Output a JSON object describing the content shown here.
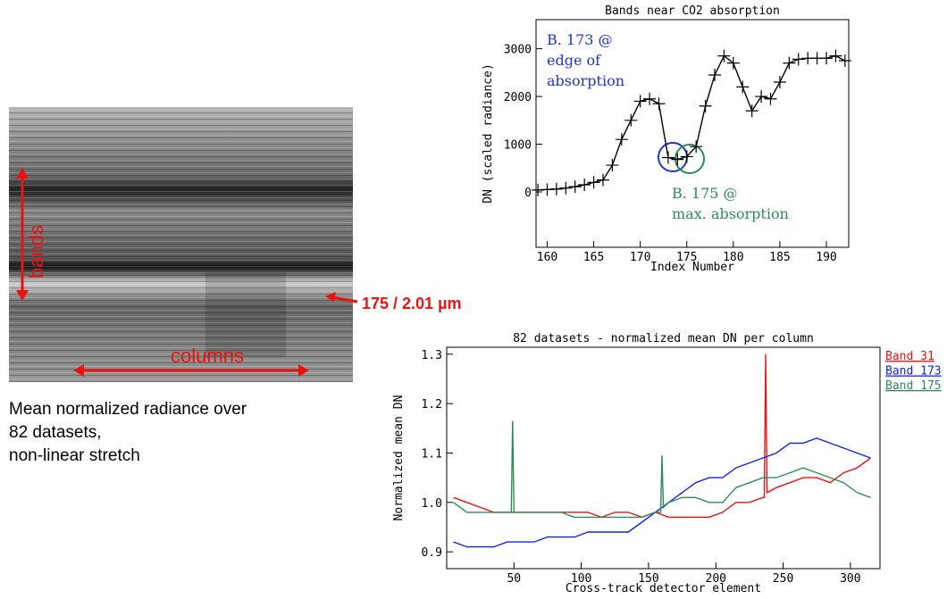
{
  "chart_data": [
    {
      "type": "line",
      "title": "Bands near CO2 absorption",
      "x_label": "Index Number",
      "y_label": "DN (scaled radiance)",
      "x": [
        159,
        160,
        161,
        162,
        163,
        164,
        165,
        166,
        167,
        168,
        169,
        170,
        171,
        172,
        173,
        174,
        175,
        176,
        177,
        178,
        179,
        180,
        181,
        182,
        183,
        184,
        185,
        186,
        187,
        188,
        189,
        190,
        191,
        192
      ],
      "values": [
        40,
        50,
        60,
        80,
        110,
        150,
        200,
        250,
        560,
        1100,
        1500,
        1900,
        1950,
        1850,
        720,
        680,
        740,
        950,
        1800,
        2450,
        2850,
        2700,
        2200,
        1700,
        2000,
        1950,
        2300,
        2700,
        2780,
        2800,
        2800,
        2800,
        2850,
        2750
      ],
      "color": "#000000",
      "marker": "+",
      "xlim": [
        158.8,
        192.4
      ],
      "xticks": [
        160,
        165,
        170,
        175,
        180,
        185,
        190
      ],
      "ylim": [
        -1160,
        3610
      ],
      "yticks": [
        0,
        1000,
        2000,
        3000
      ],
      "annotations": [
        {
          "lines": [
            "B. 173 @",
            "edge of",
            "absorption"
          ],
          "color": "#2233cc"
        },
        {
          "lines": [
            "B. 175 @",
            "max. absorption"
          ],
          "color": "#2e8b57"
        }
      ]
    },
    {
      "type": "line",
      "title": "82 datasets - normalized mean DN per column",
      "x_label": "Cross-track detector element",
      "y_label": "Normalized mean DN",
      "series": [
        {
          "name": "Band 31",
          "color": "#ee1111",
          "x": [
            5,
            15,
            25,
            35,
            45,
            55,
            65,
            75,
            85,
            95,
            105,
            115,
            125,
            135,
            145,
            155,
            165,
            175,
            185,
            195,
            205,
            215,
            225,
            235,
            236,
            237,
            238,
            245,
            255,
            265,
            275,
            285,
            295,
            305,
            315
          ],
          "values": [
            1.01,
            1.0,
            0.99,
            0.98,
            0.98,
            0.98,
            0.98,
            0.98,
            0.98,
            0.98,
            0.98,
            0.97,
            0.98,
            0.98,
            0.97,
            0.98,
            0.97,
            0.97,
            0.97,
            0.97,
            0.98,
            1.0,
            1.0,
            1.01,
            1.01,
            1.3,
            1.02,
            1.03,
            1.04,
            1.05,
            1.05,
            1.04,
            1.06,
            1.07,
            1.09
          ]
        },
        {
          "name": "Band 173",
          "color": "#1122ee",
          "x": [
            5,
            15,
            25,
            35,
            45,
            55,
            65,
            75,
            85,
            95,
            105,
            115,
            125,
            135,
            145,
            155,
            165,
            175,
            185,
            195,
            205,
            215,
            225,
            235,
            245,
            255,
            265,
            275,
            285,
            295,
            305,
            315
          ],
          "values": [
            0.92,
            0.91,
            0.91,
            0.91,
            0.92,
            0.92,
            0.92,
            0.93,
            0.93,
            0.93,
            0.94,
            0.94,
            0.94,
            0.94,
            0.96,
            0.98,
            1.0,
            1.02,
            1.04,
            1.05,
            1.05,
            1.07,
            1.08,
            1.09,
            1.1,
            1.12,
            1.12,
            1.13,
            1.12,
            1.11,
            1.1,
            1.09
          ]
        },
        {
          "name": "Band 175",
          "color": "#2e8b57",
          "x": [
            5,
            15,
            25,
            35,
            45,
            48,
            49,
            50,
            55,
            65,
            75,
            85,
            95,
            105,
            115,
            125,
            135,
            145,
            155,
            159,
            160,
            161,
            165,
            175,
            185,
            195,
            205,
            215,
            225,
            235,
            245,
            255,
            265,
            275,
            285,
            295,
            305,
            315
          ],
          "values": [
            1.0,
            0.98,
            0.98,
            0.98,
            0.98,
            0.98,
            1.165,
            0.98,
            0.98,
            0.98,
            0.98,
            0.98,
            0.97,
            0.97,
            0.97,
            0.97,
            0.97,
            0.97,
            0.98,
            0.98,
            1.095,
            0.99,
            1.0,
            1.01,
            1.01,
            1.0,
            1.0,
            1.03,
            1.04,
            1.05,
            1.05,
            1.06,
            1.07,
            1.06,
            1.05,
            1.04,
            1.02,
            1.01
          ]
        }
      ],
      "xlim": [
        0,
        322
      ],
      "xticks": [
        50,
        100,
        150,
        200,
        250,
        300
      ],
      "ylim": [
        0.866,
        1.314
      ],
      "yticks": [
        0.9,
        {
          "value": 1,
          "label": "1.0"
        },
        1.1,
        1.2,
        1.3
      ]
    }
  ],
  "figure": {
    "labels": {
      "bands": "bands",
      "columns": "columns",
      "band_pointer": "175  /  2.01 µm"
    },
    "caption": [
      "Mean normalized radiance over",
      "82 datasets,",
      "non-linear stretch"
    ]
  }
}
